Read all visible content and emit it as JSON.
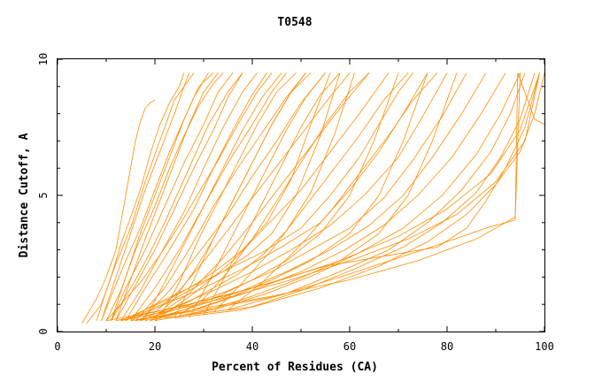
{
  "chart_data": {
    "type": "line",
    "title": "T0548",
    "xlabel": "Percent of Residues (CA)",
    "ylabel": "Distance Cutoff, A",
    "xlim": [
      0,
      100
    ],
    "ylim": [
      0,
      10
    ],
    "x_ticks": [
      0,
      20,
      40,
      60,
      80,
      100
    ],
    "y_ticks": [
      0,
      5,
      10
    ],
    "grid": false,
    "line_color": "#ff8c00",
    "series": [
      {
        "x": [
          5,
          8,
          10,
          12,
          13,
          14,
          15,
          16,
          17,
          18,
          19,
          20
        ],
        "y": [
          0.3,
          1.2,
          2.0,
          3.0,
          4.0,
          5.0,
          6.0,
          7.0,
          7.7,
          8.2,
          8.4,
          8.5
        ]
      },
      {
        "x": [
          6,
          9,
          11,
          13,
          15,
          17,
          19,
          21,
          23,
          25,
          26
        ],
        "y": [
          0.3,
          1.0,
          2.0,
          3.2,
          4.2,
          5.2,
          6.5,
          7.6,
          8.4,
          9.0,
          9.5
        ]
      },
      {
        "x": [
          8,
          10,
          12,
          15,
          18,
          20,
          22,
          24,
          26,
          27
        ],
        "y": [
          0.4,
          1.5,
          2.5,
          3.8,
          5.5,
          6.5,
          7.5,
          8.5,
          9.0,
          9.5
        ]
      },
      {
        "x": [
          9,
          11,
          14,
          17,
          20,
          23,
          26,
          28,
          30,
          31
        ],
        "y": [
          0.4,
          1.3,
          2.6,
          3.8,
          5.2,
          6.6,
          7.8,
          8.6,
          9.2,
          9.5
        ]
      },
      {
        "x": [
          10,
          13,
          16,
          20,
          23,
          26,
          29,
          32,
          34
        ],
        "y": [
          0.4,
          1.5,
          3.0,
          4.6,
          6.0,
          7.2,
          8.3,
          9.1,
          9.5
        ]
      },
      {
        "x": [
          11,
          14,
          18,
          22,
          26,
          30,
          33,
          36
        ],
        "y": [
          0.4,
          1.6,
          3.0,
          4.6,
          6.2,
          7.6,
          8.8,
          9.5
        ]
      },
      {
        "x": [
          12,
          16,
          20,
          24,
          28,
          32,
          35,
          38
        ],
        "y": [
          0.4,
          1.7,
          3.0,
          4.5,
          6.0,
          7.4,
          8.6,
          9.5
        ]
      },
      {
        "x": [
          13,
          17,
          21,
          26,
          30,
          34,
          38,
          41
        ],
        "y": [
          0.4,
          1.5,
          2.8,
          4.4,
          6.0,
          7.5,
          8.8,
          9.5
        ]
      },
      {
        "x": [
          14,
          18,
          23,
          28,
          32,
          36,
          40,
          43
        ],
        "y": [
          0.4,
          1.6,
          3.0,
          4.5,
          6.0,
          7.4,
          8.7,
          9.5
        ]
      },
      {
        "x": [
          15,
          20,
          25,
          30,
          35,
          40,
          44,
          47
        ],
        "y": [
          0.4,
          1.6,
          3.0,
          4.6,
          6.2,
          7.6,
          8.8,
          9.5
        ]
      },
      {
        "x": [
          16,
          22,
          27,
          32,
          37,
          42,
          47,
          51
        ],
        "y": [
          0.4,
          1.6,
          3.0,
          4.6,
          6.0,
          7.3,
          8.6,
          9.5
        ]
      },
      {
        "x": [
          17,
          23,
          29,
          35,
          40,
          45,
          50,
          55
        ],
        "y": [
          0.4,
          1.5,
          2.9,
          4.3,
          5.7,
          7.0,
          8.4,
          9.5
        ]
      },
      {
        "x": [
          18,
          25,
          31,
          37,
          43,
          49,
          55,
          60
        ],
        "y": [
          0.4,
          1.5,
          2.8,
          4.2,
          5.6,
          7.0,
          8.4,
          9.5
        ]
      },
      {
        "x": [
          19,
          27,
          34,
          40,
          46,
          52,
          58,
          64
        ],
        "y": [
          0.4,
          1.4,
          2.7,
          4.0,
          5.4,
          6.8,
          8.2,
          9.5
        ]
      },
      {
        "x": [
          20,
          28,
          36,
          43,
          50,
          56,
          62,
          68
        ],
        "y": [
          0.4,
          1.4,
          2.6,
          3.9,
          5.2,
          6.6,
          8.0,
          9.5
        ]
      },
      {
        "x": [
          14,
          20,
          27,
          34,
          42,
          50,
          56,
          62,
          66,
          70,
          73
        ],
        "y": [
          0.4,
          1.0,
          1.6,
          2.2,
          2.9,
          3.8,
          5.0,
          6.4,
          7.6,
          8.8,
          9.5
        ]
      },
      {
        "x": [
          15,
          22,
          30,
          38,
          46,
          54,
          60,
          66,
          71,
          76
        ],
        "y": [
          0.4,
          1.0,
          1.6,
          2.3,
          3.1,
          4.0,
          5.2,
          6.6,
          8.0,
          9.5
        ]
      },
      {
        "x": [
          16,
          24,
          32,
          40,
          48,
          56,
          63,
          70,
          75,
          80
        ],
        "y": [
          0.4,
          0.9,
          1.5,
          2.2,
          3.0,
          3.9,
          5.0,
          6.4,
          7.9,
          9.5
        ]
      },
      {
        "x": [
          17,
          26,
          35,
          44,
          52,
          60,
          67,
          73,
          79,
          84
        ],
        "y": [
          0.4,
          0.9,
          1.5,
          2.2,
          3.0,
          3.8,
          4.9,
          6.3,
          7.9,
          9.5
        ]
      },
      {
        "x": [
          18,
          28,
          38,
          47,
          56,
          64,
          71,
          77,
          83,
          88
        ],
        "y": [
          0.4,
          0.9,
          1.5,
          2.2,
          3.0,
          3.9,
          5.0,
          6.4,
          8.0,
          9.5
        ]
      },
      {
        "x": [
          19,
          30,
          40,
          50,
          59,
          67,
          74,
          81,
          87,
          92
        ],
        "y": [
          0.4,
          0.9,
          1.5,
          2.2,
          3.0,
          3.9,
          5.0,
          6.4,
          8.0,
          9.5
        ]
      },
      {
        "x": [
          20,
          32,
          43,
          53,
          62,
          71,
          79,
          86,
          91,
          95
        ],
        "y": [
          0.4,
          0.8,
          1.4,
          2.1,
          2.9,
          3.8,
          5.0,
          6.5,
          8.0,
          9.5
        ]
      },
      {
        "x": [
          22,
          35,
          47,
          58,
          68,
          76,
          83,
          89,
          93,
          96
        ],
        "y": [
          0.5,
          0.8,
          1.4,
          2.2,
          3.0,
          4.0,
          5.2,
          6.6,
          8.0,
          9.5
        ]
      },
      {
        "x": [
          24,
          38,
          50,
          61,
          71,
          79,
          86,
          91,
          95,
          98
        ],
        "y": [
          0.5,
          0.8,
          1.5,
          2.3,
          3.1,
          4.0,
          5.1,
          6.4,
          7.8,
          9.5
        ]
      },
      {
        "x": [
          26,
          40,
          54,
          66,
          76,
          84,
          90,
          95,
          98,
          100
        ],
        "y": [
          0.6,
          0.9,
          1.6,
          2.4,
          3.3,
          4.3,
          5.4,
          6.6,
          8.0,
          9.5
        ]
      },
      {
        "x": [
          13,
          24,
          36,
          48,
          60,
          72,
          82,
          90,
          96,
          99
        ],
        "y": [
          0.4,
          0.8,
          1.3,
          1.9,
          2.6,
          3.4,
          4.3,
          5.5,
          7.0,
          9.5
        ]
      },
      {
        "x": [
          12,
          22,
          34,
          46,
          58,
          70,
          80,
          89,
          95,
          99
        ],
        "y": [
          0.4,
          0.8,
          1.3,
          1.9,
          2.6,
          3.5,
          4.5,
          5.8,
          7.4,
          9.5
        ]
      },
      {
        "x": [
          16,
          28,
          44,
          60,
          74,
          86,
          94,
          94.5,
          98,
          100
        ],
        "y": [
          0.4,
          0.8,
          1.3,
          1.9,
          2.6,
          3.4,
          4.2,
          9.5,
          7.8,
          7.6
        ]
      },
      {
        "x": [
          15,
          30,
          45,
          58,
          70,
          80,
          88,
          94,
          95
        ],
        "y": [
          0.4,
          0.8,
          1.3,
          2.0,
          2.7,
          3.3,
          3.8,
          4.1,
          9.5
        ]
      },
      {
        "x": [
          10,
          25,
          40,
          55,
          68,
          78,
          84,
          88,
          92,
          96,
          99
        ],
        "y": [
          0.4,
          0.9,
          1.6,
          2.4,
          2.8,
          3.1,
          3.8,
          4.8,
          6.0,
          7.5,
          9.5
        ]
      },
      {
        "x": [
          18,
          22,
          26,
          30,
          34,
          38,
          42,
          46
        ],
        "y": [
          0.5,
          1.8,
          3.2,
          4.6,
          6.0,
          7.4,
          8.6,
          9.5
        ]
      },
      {
        "x": [
          21,
          25,
          29,
          33,
          37,
          41,
          45,
          49
        ],
        "y": [
          0.5,
          1.8,
          3.4,
          4.8,
          6.2,
          7.6,
          8.8,
          9.5
        ]
      },
      {
        "x": [
          24,
          28,
          32,
          36,
          40,
          44,
          48,
          52
        ],
        "y": [
          0.5,
          1.9,
          3.4,
          4.8,
          6.2,
          7.6,
          8.8,
          9.5
        ]
      },
      {
        "x": [
          27,
          31,
          35,
          39,
          43,
          47,
          51,
          55
        ],
        "y": [
          0.5,
          1.8,
          3.2,
          4.6,
          6.0,
          7.4,
          8.6,
          9.5
        ]
      },
      {
        "x": [
          30,
          34,
          38,
          42,
          46,
          50,
          54,
          58
        ],
        "y": [
          0.6,
          1.9,
          3.3,
          4.7,
          6.1,
          7.5,
          8.7,
          9.5
        ]
      },
      {
        "x": [
          12,
          15,
          18,
          21,
          24,
          27,
          30,
          33
        ],
        "y": [
          0.4,
          1.9,
          3.4,
          4.8,
          6.2,
          7.6,
          8.8,
          9.5
        ]
      },
      {
        "x": [
          11,
          14,
          17,
          20,
          23,
          26,
          29,
          32
        ],
        "y": [
          0.4,
          2.0,
          3.6,
          5.0,
          6.4,
          7.8,
          9.0,
          9.5
        ]
      },
      {
        "x": [
          9,
          12,
          15,
          18,
          21,
          24,
          26,
          28
        ],
        "y": [
          0.4,
          2.0,
          3.6,
          5.2,
          6.6,
          8.0,
          9.0,
          9.5
        ]
      },
      {
        "x": [
          32,
          38,
          44,
          50,
          56,
          62,
          67,
          72
        ],
        "y": [
          0.7,
          1.8,
          3.0,
          4.4,
          5.8,
          7.2,
          8.5,
          9.5
        ]
      },
      {
        "x": [
          35,
          42,
          49,
          56,
          62,
          68,
          73,
          78
        ],
        "y": [
          0.8,
          1.8,
          3.0,
          4.4,
          5.8,
          7.2,
          8.5,
          9.5
        ]
      },
      {
        "x": [
          14,
          19,
          24,
          29,
          34,
          39,
          44,
          49,
          54,
          58
        ],
        "y": [
          0.4,
          0.8,
          1.2,
          1.7,
          2.2,
          2.8,
          3.6,
          5.0,
          7.2,
          9.5
        ]
      },
      {
        "x": [
          13,
          18,
          23,
          28,
          33,
          38,
          43,
          48,
          52,
          56
        ],
        "y": [
          0.4,
          0.8,
          1.2,
          1.7,
          2.3,
          3.0,
          4.0,
          5.6,
          7.6,
          9.5
        ]
      },
      {
        "x": [
          17,
          22,
          27,
          32,
          37,
          42,
          47,
          52,
          57,
          61
        ],
        "y": [
          0.4,
          0.7,
          1.1,
          1.6,
          2.1,
          2.8,
          3.7,
          5.1,
          7.3,
          9.5
        ]
      },
      {
        "x": [
          19,
          26,
          33,
          40,
          47,
          54,
          60,
          65,
          70
        ],
        "y": [
          0.4,
          0.8,
          1.3,
          1.9,
          2.6,
          3.6,
          5.0,
          7.0,
          9.5
        ]
      },
      {
        "x": [
          21,
          28,
          36,
          44,
          52,
          60,
          66,
          71,
          76
        ],
        "y": [
          0.5,
          0.8,
          1.3,
          1.9,
          2.6,
          3.6,
          5.0,
          7.0,
          9.5
        ]
      },
      {
        "x": [
          23,
          31,
          40,
          49,
          58,
          66,
          72,
          77,
          82
        ],
        "y": [
          0.5,
          0.8,
          1.3,
          1.9,
          2.6,
          3.6,
          5.0,
          7.0,
          9.5
        ]
      },
      {
        "x": [
          11,
          13,
          16,
          19,
          22,
          25,
          28,
          31,
          35,
          38
        ],
        "y": [
          0.4,
          1.0,
          1.9,
          2.9,
          4.0,
          5.2,
          6.4,
          7.6,
          8.8,
          9.5
        ]
      },
      {
        "x": [
          10,
          13,
          17,
          21,
          25,
          29,
          33,
          37,
          41,
          44
        ],
        "y": [
          0.4,
          1.0,
          1.8,
          2.8,
          3.9,
          5.1,
          6.3,
          7.6,
          8.8,
          9.5
        ]
      },
      {
        "x": [
          20,
          24,
          28,
          32,
          36,
          40,
          44,
          48,
          51
        ],
        "y": [
          0.5,
          1.2,
          2.2,
          3.4,
          4.8,
          6.2,
          7.6,
          8.8,
          9.5
        ]
      },
      {
        "x": [
          25,
          30,
          35,
          40,
          45,
          50,
          55,
          60,
          64
        ],
        "y": [
          0.6,
          1.2,
          2.2,
          3.4,
          4.8,
          6.2,
          7.6,
          8.8,
          9.5
        ]
      }
    ]
  }
}
